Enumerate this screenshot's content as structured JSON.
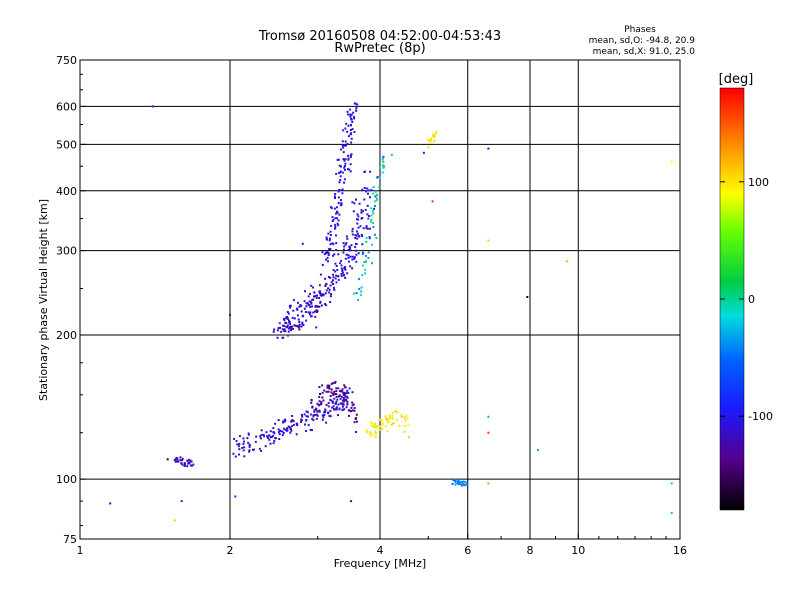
{
  "chart_data": {
    "type": "scatter",
    "title": "Tromsø 20160508 04:52:00-04:53:43",
    "subtitle": "RwPretec (8p)",
    "xlabel": "Frequency [MHz]",
    "ylabel": "Stationary phase Virtual Height [km]",
    "x_scale": "log",
    "y_scale": "log",
    "xlim": [
      1,
      16
    ],
    "ylim": [
      75,
      750
    ],
    "x_ticks": [
      {
        "value": 1,
        "label": "1"
      },
      {
        "value": 2,
        "label": "2"
      },
      {
        "value": 4,
        "label": "4"
      },
      {
        "value": 6,
        "label": "6"
      },
      {
        "value": 8,
        "label": "8"
      },
      {
        "value": 10,
        "label": "10"
      },
      {
        "value": 16,
        "label": "16"
      }
    ],
    "y_ticks": [
      {
        "value": 75,
        "label": "75"
      },
      {
        "value": 100,
        "label": "100"
      },
      {
        "value": 200,
        "label": "200"
      },
      {
        "value": 300,
        "label": "300"
      },
      {
        "value": 400,
        "label": "400"
      },
      {
        "value": 500,
        "label": "500"
      },
      {
        "value": 600,
        "label": "600"
      },
      {
        "value": 750,
        "label": "750"
      }
    ],
    "grid": true,
    "grid_x": [
      2,
      4,
      6,
      8,
      10
    ],
    "grid_y": [
      100,
      200,
      300,
      400,
      500,
      600
    ],
    "stats": {
      "heading": "Phases",
      "line_o": "mean, sd,O: -94.8, 20.9",
      "line_x": "mean, sd,X:  91.0, 25.0"
    },
    "colorbar": {
      "label": "[deg]",
      "range": [
        -180,
        180
      ],
      "ticks": [
        {
          "value": 100,
          "label": "100"
        },
        {
          "value": 0,
          "label": "0"
        },
        {
          "value": -100,
          "label": "-100"
        }
      ]
    },
    "clusters": [
      {
        "f": [
          2.55,
          2.7,
          3.0,
          3.3,
          3.5,
          3.65,
          3.75
        ],
        "h": [
          205,
          220,
          240,
          265,
          300,
          340,
          420
        ],
        "spread": 0.07,
        "n": 220,
        "phase": [
          -110,
          20
        ]
      },
      {
        "f": [
          3.1,
          3.25,
          3.35,
          3.45,
          3.55
        ],
        "h": [
          280,
          350,
          420,
          520,
          600
        ],
        "spread": 0.045,
        "n": 140,
        "phase": [
          -105,
          20
        ]
      },
      {
        "f": [
          2.5,
          2.75,
          3.0,
          3.2
        ],
        "h": [
          200,
          210,
          230,
          260
        ],
        "spread": 0.04,
        "n": 60,
        "phase": [
          -120,
          20
        ]
      },
      {
        "f": [
          3.6,
          3.8,
          3.9,
          4.1
        ],
        "h": [
          240,
          300,
          380,
          480
        ],
        "spread": 0.04,
        "n": 60,
        "phase": [
          -20,
          60
        ]
      },
      {
        "f": [
          2.0,
          2.3,
          2.6,
          2.9,
          3.2,
          3.45
        ],
        "h": [
          116,
          120,
          128,
          135,
          140,
          150
        ],
        "spread": 0.05,
        "n": 200,
        "phase": [
          -110,
          20
        ]
      },
      {
        "f": [
          2.9,
          3.2,
          3.4,
          3.6
        ],
        "h": [
          140,
          155,
          150,
          130
        ],
        "spread": 0.05,
        "n": 80,
        "phase": [
          -135,
          15
        ]
      },
      {
        "f": [
          3.8,
          4.0,
          4.3,
          4.6
        ],
        "h": [
          125,
          130,
          135,
          128
        ],
        "spread": 0.04,
        "n": 60,
        "phase": [
          95,
          25
        ]
      },
      {
        "f": [
          1.55,
          1.62,
          1.7
        ],
        "h": [
          110,
          108,
          108
        ],
        "spread": 0.02,
        "n": 30,
        "phase": [
          -120,
          25
        ]
      },
      {
        "f": [
          5.6,
          5.8,
          6.0
        ],
        "h": [
          99,
          98,
          98
        ],
        "spread": 0.015,
        "n": 25,
        "phase": [
          -40,
          15
        ]
      },
      {
        "f": [
          5.0,
          5.1,
          5.2
        ],
        "h": [
          505,
          515,
          525
        ],
        "spread": 0.02,
        "n": 15,
        "phase": [
          100,
          20
        ]
      }
    ],
    "outliers": [
      {
        "f": 1.15,
        "h": 89,
        "phase": -120
      },
      {
        "f": 1.4,
        "h": 600,
        "phase": -100
      },
      {
        "f": 1.5,
        "h": 110,
        "phase": -160
      },
      {
        "f": 1.55,
        "h": 82,
        "phase": 110
      },
      {
        "f": 1.6,
        "h": 90,
        "phase": -100
      },
      {
        "f": 2.0,
        "h": 220,
        "phase": -110
      },
      {
        "f": 2.05,
        "h": 92,
        "phase": -80
      },
      {
        "f": 2.8,
        "h": 310,
        "phase": -120
      },
      {
        "f": 3.5,
        "h": 90,
        "phase": -130
      },
      {
        "f": 4.9,
        "h": 480,
        "phase": -100
      },
      {
        "f": 5.1,
        "h": 380,
        "phase": 160
      },
      {
        "f": 6.6,
        "h": 490,
        "phase": -110
      },
      {
        "f": 6.6,
        "h": 315,
        "phase": 110
      },
      {
        "f": 6.6,
        "h": 135,
        "phase": -30
      },
      {
        "f": 6.6,
        "h": 98,
        "phase": 130
      },
      {
        "f": 7.9,
        "h": 240,
        "phase": -170
      },
      {
        "f": 9.5,
        "h": 285,
        "phase": 120
      },
      {
        "f": 8.3,
        "h": 115,
        "phase": -30
      },
      {
        "f": 15.4,
        "h": 460,
        "phase": 90
      },
      {
        "f": 15.4,
        "h": 98,
        "phase": -20
      },
      {
        "f": 15.4,
        "h": 85,
        "phase": -20
      },
      {
        "f": 6.6,
        "h": 125,
        "phase": 160
      }
    ]
  }
}
